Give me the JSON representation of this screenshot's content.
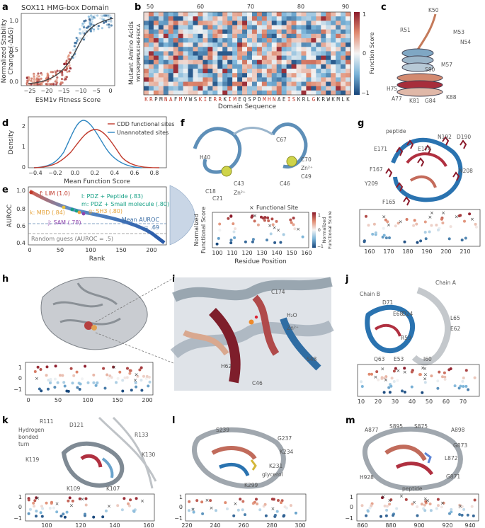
{
  "panels": {
    "a": {
      "label": "a",
      "title": "SOX11 HMG-box Domain",
      "xlabel": "ESM1v Fitness Score",
      "ylabel_1": "Normalized Stability",
      "ylabel_2": "Change (-ΔΔG)",
      "xticks": [
        "−25",
        "−20",
        "−15",
        "−10",
        "−5",
        "0"
      ],
      "yticks": [
        "0.0",
        "0.5",
        "1.0"
      ]
    },
    "b": {
      "label": "b",
      "xlabel": "Domain Sequence",
      "ylabel": "Mutant Amino Acids",
      "y_letters": "YWTSRQPNMLKIHGFEDCA",
      "sequence": [
        "K",
        "R",
        "P",
        "M",
        "N",
        "A",
        "F",
        "M",
        "V",
        "W",
        "S",
        "K",
        "I",
        "E",
        "R",
        "R",
        "K",
        "I",
        "M",
        "E",
        "Q",
        "S",
        "P",
        "D",
        "M",
        "H",
        "N",
        "A",
        "E",
        "I",
        "S",
        "K",
        "R",
        "L",
        "G",
        "K",
        "R",
        "W",
        "K",
        "M",
        "L",
        "K"
      ],
      "xticks": [
        "50",
        "60",
        "70",
        "80",
        "90"
      ],
      "cbar_label": "Function Score",
      "cbar_ticks": [
        "1",
        "0",
        "−1"
      ]
    },
    "c": {
      "label": "c",
      "residues": [
        "K50",
        "R51",
        "M53",
        "N54",
        "S80",
        "M57",
        "H75",
        "A77",
        "K81",
        "G84",
        "K88"
      ]
    },
    "d": {
      "label": "d",
      "xlabel": "Mean Function Score",
      "ylabel": "Density",
      "legend": [
        "CDD functional sites",
        "Unannotated sites"
      ],
      "xticks": [
        "−0.4",
        "−0.2",
        "0.0",
        "0.2",
        "0.4",
        "0.6",
        "0.8"
      ],
      "yticks": [
        "0",
        "1",
        "2"
      ]
    },
    "e": {
      "label": "e",
      "xlabel": "Rank",
      "ylabel": "AUROC",
      "xticks": [
        "0",
        "50",
        "100",
        "150",
        "200"
      ],
      "yticks": [
        "0.4",
        "0.6",
        "0.8",
        "1.0"
      ],
      "annotations": [
        "f: LIM (1.0)",
        "l: PDZ + Peptide (.83)",
        "m: PDZ + Small molecule (.80)",
        "g: SH3 (.80)",
        "k: MBD (.84)",
        "j: SAM (.78)",
        "Mean AUROC",
        "= .69",
        "Random guess (AUROC = .5)"
      ]
    },
    "f": {
      "label": "f",
      "residues": [
        "H40",
        "C67",
        "C70",
        "Zn²⁺",
        "C49",
        "C43",
        "C46",
        "C18",
        "C21",
        "Zn²⁺"
      ],
      "legend": "Functional Site",
      "xlabel": "Residue Position",
      "ylabel_1": "Normalized",
      "ylabel_2": "Functional Score",
      "xticks": [
        "100",
        "110",
        "120",
        "130",
        "140",
        "150",
        "160"
      ],
      "cbar_title_1": "Normalized",
      "cbar_title_2": "Functional Score",
      "cbar_ticks": [
        "1",
        "0",
        "−1"
      ]
    },
    "g": {
      "label": "g",
      "residues": [
        "peptide",
        "N192",
        "D190",
        "E171",
        "E174",
        "F167",
        "N208",
        "Y209",
        "F165"
      ],
      "xticks": [
        "160",
        "170",
        "180",
        "190",
        "200",
        "210"
      ]
    },
    "h": {
      "label": "h",
      "xticks": [
        "0",
        "50",
        "100",
        "150",
        "200"
      ],
      "yticks": [
        "1",
        "0",
        "−1"
      ]
    },
    "i": {
      "label": "i",
      "residues": [
        "C174",
        "H₂O",
        "Zn²⁺",
        "S48",
        "H62",
        "C46"
      ]
    },
    "j": {
      "label": "j",
      "residues": [
        "Chain A",
        "Chain B",
        "D71",
        "E68",
        "D24",
        "L65",
        "E62",
        "R59",
        "Q63",
        "E53",
        "I60"
      ],
      "xticks": [
        "10",
        "20",
        "30",
        "40",
        "50",
        "60",
        "70"
      ]
    },
    "k": {
      "label": "k",
      "residues": [
        "R111",
        "D121",
        "R133",
        "Hydrogen",
        "bonded",
        "turn",
        "K119",
        "K130",
        "K109",
        "K107"
      ],
      "xticks": [
        "100",
        "120",
        "140",
        "160"
      ]
    },
    "l": {
      "label": "l",
      "residues": [
        "S239",
        "G237",
        "K234",
        "K231",
        "glycerol",
        "K299"
      ],
      "xticks": [
        "220",
        "240",
        "260",
        "280",
        "300"
      ]
    },
    "m": {
      "label": "m",
      "residues": [
        "A877",
        "S895",
        "S875",
        "A898",
        "G873",
        "L872",
        "H928",
        "peptide",
        "G871"
      ],
      "xticks": [
        "860",
        "880",
        "900",
        "920",
        "940"
      ]
    }
  },
  "colors": {
    "red": "#c0392b",
    "blue": "#2e86c1",
    "dark_red": "#8b1a2b",
    "grey": "#9aa0a6"
  }
}
